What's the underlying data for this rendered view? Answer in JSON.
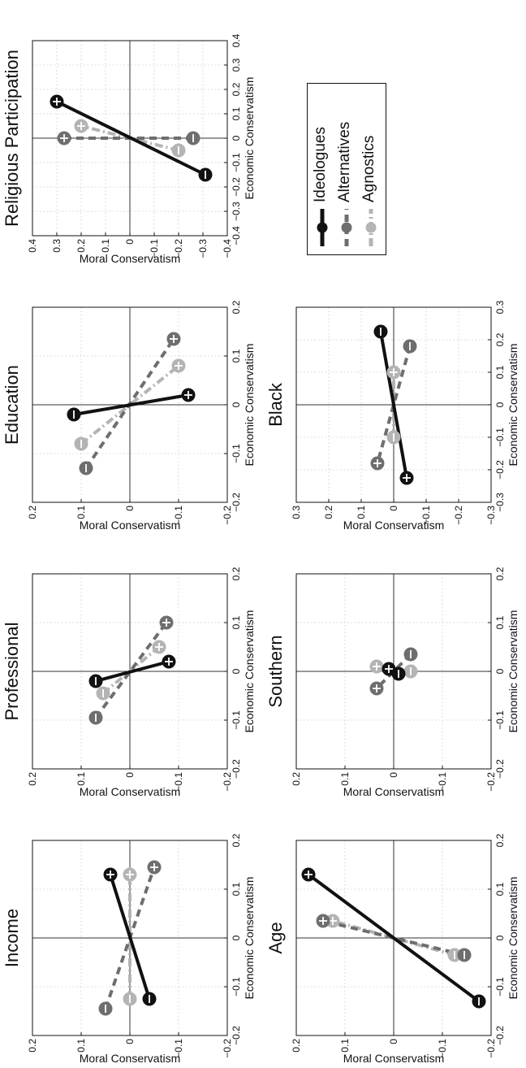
{
  "figure": {
    "legend": [
      {
        "name": "Ideologues",
        "color": "#111111",
        "dash": "solid"
      },
      {
        "name": "Alternatives",
        "color": "#6e6e6e",
        "dash": "dashed"
      },
      {
        "name": "Agnostics",
        "color": "#b4b4b4",
        "dash": "dashdot"
      }
    ]
  },
  "chart_data": [
    {
      "type": "line",
      "title": "Income",
      "xlabel": "Economic Conservatism",
      "ylabel": "Moral Conservatism",
      "xlim": [
        -0.2,
        0.2
      ],
      "ylim": [
        -0.2,
        0.2
      ],
      "xticks": [
        "−0.2",
        "−0.1",
        "0",
        "0.1",
        "0.2"
      ],
      "yticks": [
        "−0.2",
        "−0.1",
        "0",
        "0.1",
        "0.2"
      ],
      "grid": true,
      "series": [
        {
          "name": "Ideologues",
          "minus": [
            -0.125,
            -0.04
          ],
          "plus": [
            0.13,
            0.04
          ]
        },
        {
          "name": "Alternatives",
          "minus": [
            -0.145,
            0.05
          ],
          "plus": [
            0.145,
            -0.05
          ]
        },
        {
          "name": "Agnostics",
          "minus": [
            -0.125,
            0.0
          ],
          "plus": [
            0.13,
            0.0
          ]
        }
      ]
    },
    {
      "type": "line",
      "title": "Professional",
      "xlabel": "Economic Conservatism",
      "ylabel": "Moral Conservatism",
      "xlim": [
        -0.2,
        0.2
      ],
      "ylim": [
        -0.2,
        0.2
      ],
      "xticks": [
        "−0.2",
        "−0.1",
        "0",
        "0.1",
        "0.2"
      ],
      "yticks": [
        "−0.2",
        "−0.1",
        "0",
        "0.1",
        "0.2"
      ],
      "grid": true,
      "series": [
        {
          "name": "Ideologues",
          "minus": [
            -0.02,
            0.07
          ],
          "plus": [
            0.02,
            -0.08
          ]
        },
        {
          "name": "Alternatives",
          "minus": [
            -0.095,
            0.07
          ],
          "plus": [
            0.1,
            -0.075
          ]
        },
        {
          "name": "Agnostics",
          "minus": [
            -0.045,
            0.055
          ],
          "plus": [
            0.05,
            -0.06
          ]
        }
      ]
    },
    {
      "type": "line",
      "title": "Education",
      "xlabel": "Economic Conservatism",
      "ylabel": "Moral Conservatism",
      "xlim": [
        -0.2,
        0.2
      ],
      "ylim": [
        -0.2,
        0.2
      ],
      "xticks": [
        "−0.2",
        "−0.1",
        "0",
        "0.1",
        "0.2"
      ],
      "yticks": [
        "−0.2",
        "−0.1",
        "0",
        "0.1",
        "0.2"
      ],
      "grid": true,
      "series": [
        {
          "name": "Ideologues",
          "minus": [
            -0.02,
            0.115
          ],
          "plus": [
            0.02,
            -0.12
          ]
        },
        {
          "name": "Alternatives",
          "minus": [
            -0.13,
            0.09
          ],
          "plus": [
            0.135,
            -0.09
          ]
        },
        {
          "name": "Agnostics",
          "minus": [
            -0.08,
            0.1
          ],
          "plus": [
            0.08,
            -0.1
          ]
        }
      ]
    },
    {
      "type": "line",
      "title": "Religious Participation",
      "xlabel": "Economic Conservatism",
      "ylabel": "Moral Conservatism",
      "xlim": [
        -0.4,
        0.4
      ],
      "ylim": [
        -0.4,
        0.4
      ],
      "xticks": [
        "−0.4",
        "−0.3",
        "−0.2",
        "−0.1",
        "0",
        "0.1",
        "0.2",
        "0.3",
        "0.4"
      ],
      "yticks": [
        "−0.4",
        "−0.3",
        "−0.2",
        "−0.1",
        "0",
        "0.1",
        "0.2",
        "0.3",
        "0.4"
      ],
      "grid": true,
      "series": [
        {
          "name": "Ideologues",
          "minus": [
            -0.15,
            -0.31
          ],
          "plus": [
            0.15,
            0.3
          ]
        },
        {
          "name": "Alternatives",
          "minus": [
            0.0,
            -0.26
          ],
          "plus": [
            0.0,
            0.27
          ]
        },
        {
          "name": "Agnostics",
          "minus": [
            -0.05,
            -0.2
          ],
          "plus": [
            0.05,
            0.2
          ]
        }
      ]
    },
    {
      "type": "line",
      "title": "Age",
      "xlabel": "Economic Conservatism",
      "ylabel": "Moral Conservatism",
      "xlim": [
        -0.2,
        0.2
      ],
      "ylim": [
        -0.2,
        0.2
      ],
      "xticks": [
        "−0.2",
        "−0.1",
        "0",
        "0.1",
        "0.2"
      ],
      "yticks": [
        "−0.2",
        "−0.1",
        "0",
        "0.1",
        "0.2"
      ],
      "grid": true,
      "series": [
        {
          "name": "Ideologues",
          "minus": [
            -0.13,
            -0.175
          ],
          "plus": [
            0.13,
            0.175
          ]
        },
        {
          "name": "Alternatives",
          "minus": [
            -0.035,
            -0.145
          ],
          "plus": [
            0.035,
            0.145
          ]
        },
        {
          "name": "Agnostics",
          "minus": [
            -0.035,
            -0.125
          ],
          "plus": [
            0.035,
            0.125
          ]
        }
      ]
    },
    {
      "type": "line",
      "title": "Southern",
      "xlabel": "Economic Conservatism",
      "ylabel": "Moral Conservatism",
      "xlim": [
        -0.2,
        0.2
      ],
      "ylim": [
        -0.2,
        0.2
      ],
      "xticks": [
        "−0.2",
        "−0.1",
        "0",
        "0.1",
        "0.2"
      ],
      "yticks": [
        "−0.2",
        "−0.1",
        "0",
        "0.1",
        "0.2"
      ],
      "grid": true,
      "series": [
        {
          "name": "Ideologues",
          "minus": [
            -0.005,
            -0.01
          ],
          "plus": [
            0.005,
            0.01
          ]
        },
        {
          "name": "Alternatives",
          "minus": [
            0.035,
            -0.035
          ],
          "plus": [
            -0.035,
            0.035
          ]
        },
        {
          "name": "Agnostics",
          "minus": [
            0.0,
            -0.035
          ],
          "plus": [
            0.01,
            0.035
          ]
        }
      ]
    },
    {
      "type": "line",
      "title": "Black",
      "xlabel": "Economic Conservatism",
      "ylabel": "Moral Conservatism",
      "xlim": [
        -0.3,
        0.3
      ],
      "ylim": [
        -0.3,
        0.3
      ],
      "xticks": [
        "−0.3",
        "−0.2",
        "−0.1",
        "0",
        "0.1",
        "0.2",
        "0.3"
      ],
      "yticks": [
        "−0.3",
        "−0.2",
        "−0.1",
        "0",
        "0.1",
        "0.2",
        "0.3"
      ],
      "grid": true,
      "series": [
        {
          "name": "Ideologues",
          "minus": [
            0.225,
            0.04
          ],
          "plus": [
            -0.225,
            -0.04
          ]
        },
        {
          "name": "Alternatives",
          "minus": [
            0.18,
            -0.05
          ],
          "plus": [
            -0.18,
            0.05
          ]
        },
        {
          "name": "Agnostics",
          "minus": [
            -0.1,
            0.0
          ],
          "plus": [
            0.1,
            0.0
          ]
        }
      ]
    }
  ]
}
